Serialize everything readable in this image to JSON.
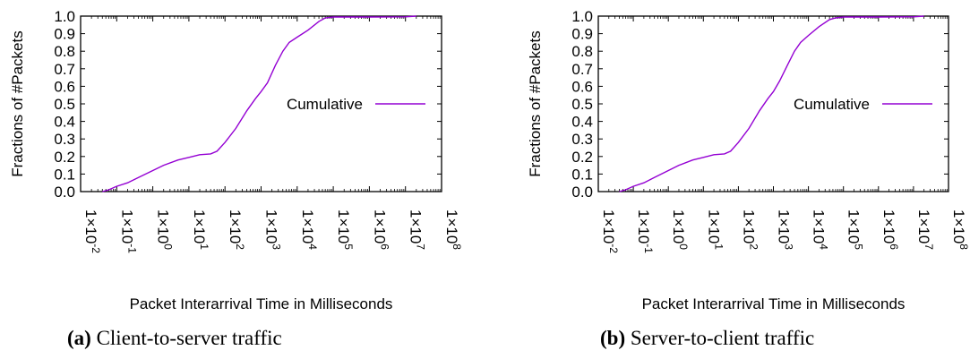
{
  "figure": {
    "captions": [
      {
        "tag": "(a)",
        "text": "Client-to-server traffic"
      },
      {
        "tag": "(b)",
        "text": "Server-to-client traffic"
      }
    ]
  },
  "chart_data": [
    {
      "type": "line",
      "title": "",
      "xlabel": "Packet Interarrival Time in Milliseconds",
      "ylabel": "Fractions of #Packets",
      "x_scale": "log10",
      "xlim": [
        0.01,
        100000000
      ],
      "ylim": [
        0.0,
        1.0
      ],
      "x_ticks": [
        0.01,
        0.1,
        1,
        10,
        100,
        1000,
        10000,
        100000,
        1000000,
        10000000,
        100000000
      ],
      "x_tick_labels": [
        {
          "base": "1×10",
          "exp": "-2"
        },
        {
          "base": "1×10",
          "exp": "-1"
        },
        {
          "base": "1×10",
          "exp": "0"
        },
        {
          "base": "1×10",
          "exp": "1"
        },
        {
          "base": "1×10",
          "exp": "2"
        },
        {
          "base": "1×10",
          "exp": "3"
        },
        {
          "base": "1×10",
          "exp": "4"
        },
        {
          "base": "1×10",
          "exp": "5"
        },
        {
          "base": "1×10",
          "exp": "6"
        },
        {
          "base": "1×10",
          "exp": "7"
        },
        {
          "base": "1×10",
          "exp": "8"
        }
      ],
      "y_ticks": [
        "0.0",
        "0.1",
        "0.2",
        "0.3",
        "0.4",
        "0.5",
        "0.6",
        "0.7",
        "0.8",
        "0.9",
        "1.0"
      ],
      "grid": false,
      "legend": {
        "position": "right-middle"
      },
      "series": [
        {
          "name": "Cumulative",
          "color": "#9400d3",
          "x": [
            0.04,
            0.06,
            0.1,
            0.2,
            0.4,
            1,
            2,
            5,
            10,
            20,
            40,
            60,
            100,
            200,
            400,
            700,
            1000,
            1500,
            2500,
            4000,
            6000,
            10000,
            20000,
            40000,
            60000,
            100000,
            300000,
            1000000,
            10000000,
            20000000
          ],
          "y": [
            0.0,
            0.01,
            0.03,
            0.05,
            0.08,
            0.12,
            0.15,
            0.18,
            0.195,
            0.21,
            0.215,
            0.23,
            0.28,
            0.36,
            0.46,
            0.53,
            0.57,
            0.62,
            0.72,
            0.8,
            0.85,
            0.88,
            0.92,
            0.97,
            0.99,
            0.995,
            0.995,
            0.995,
            0.996,
            1.0
          ]
        }
      ]
    },
    {
      "type": "line",
      "title": "",
      "xlabel": "Packet Interarrival Time in Milliseconds",
      "ylabel": "Fractions of #Packets",
      "x_scale": "log10",
      "xlim": [
        0.01,
        100000000
      ],
      "ylim": [
        0.0,
        1.0
      ],
      "x_ticks": [
        0.01,
        0.1,
        1,
        10,
        100,
        1000,
        10000,
        100000,
        1000000,
        10000000,
        100000000
      ],
      "x_tick_labels": [
        {
          "base": "1×10",
          "exp": "-2"
        },
        {
          "base": "1×10",
          "exp": "-1"
        },
        {
          "base": "1×10",
          "exp": "0"
        },
        {
          "base": "1×10",
          "exp": "1"
        },
        {
          "base": "1×10",
          "exp": "2"
        },
        {
          "base": "1×10",
          "exp": "3"
        },
        {
          "base": "1×10",
          "exp": "4"
        },
        {
          "base": "1×10",
          "exp": "5"
        },
        {
          "base": "1×10",
          "exp": "6"
        },
        {
          "base": "1×10",
          "exp": "7"
        },
        {
          "base": "1×10",
          "exp": "8"
        }
      ],
      "y_ticks": [
        "0.0",
        "0.1",
        "0.2",
        "0.3",
        "0.4",
        "0.5",
        "0.6",
        "0.7",
        "0.8",
        "0.9",
        "1.0"
      ],
      "grid": false,
      "legend": {
        "position": "right-middle"
      },
      "series": [
        {
          "name": "Cumulative",
          "color": "#9400d3",
          "x": [
            0.04,
            0.06,
            0.1,
            0.2,
            0.4,
            1,
            2,
            5,
            10,
            20,
            40,
            60,
            100,
            200,
            400,
            700,
            1000,
            1500,
            2500,
            4000,
            6000,
            10000,
            20000,
            40000,
            60000,
            100000,
            300000,
            1000000,
            10000000,
            20000000
          ],
          "y": [
            0.0,
            0.01,
            0.03,
            0.05,
            0.08,
            0.12,
            0.15,
            0.18,
            0.195,
            0.21,
            0.215,
            0.23,
            0.28,
            0.36,
            0.46,
            0.53,
            0.57,
            0.63,
            0.72,
            0.8,
            0.85,
            0.89,
            0.94,
            0.98,
            0.99,
            0.995,
            0.995,
            0.995,
            0.996,
            1.0
          ]
        }
      ]
    }
  ]
}
